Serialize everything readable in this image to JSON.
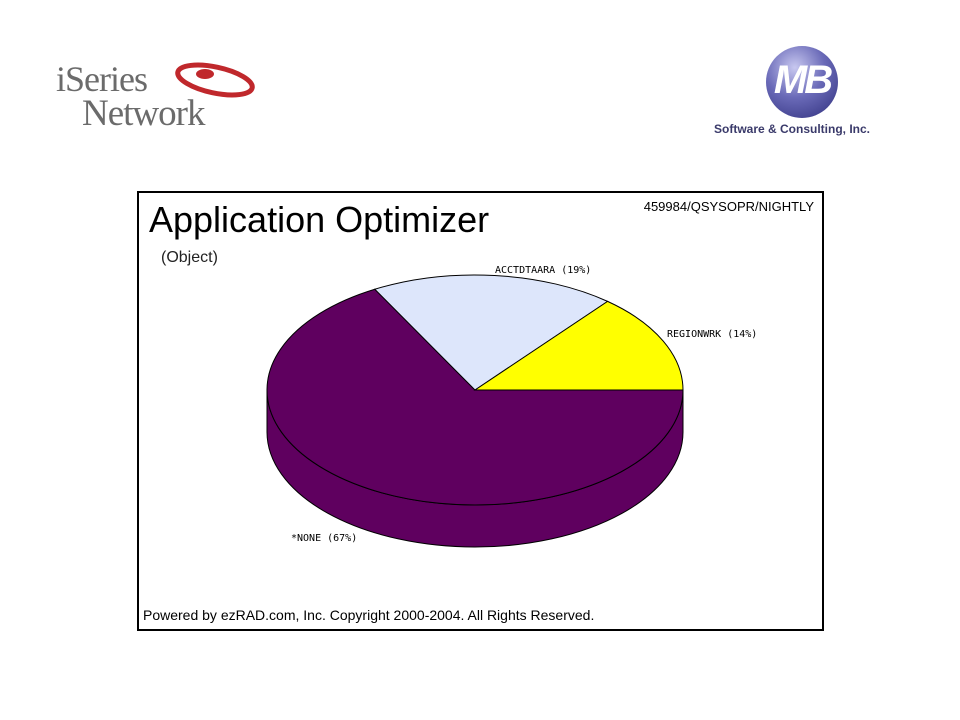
{
  "logos": {
    "left": {
      "line1": "iSeries",
      "line2": "Network"
    },
    "right": {
      "mark": "MB",
      "tagline": "Software & Consulting, Inc."
    }
  },
  "chart_data": {
    "type": "pie",
    "title": "Application Optimizer",
    "subtitle": "(Object)",
    "job_label": "459984/QSYSOPR/NIGHTLY",
    "footer": "Powered by ezRAD.com, Inc. Copyright 2000-2004.  All Rights Reserved.",
    "slices": [
      {
        "label": "*NONE (67%)",
        "value": 67,
        "color": "#5f005f",
        "side_color": "#5f005f"
      },
      {
        "label": "ACCTDTAARA (19%)",
        "value": 19,
        "color": "#dde6fb",
        "side_color": "#dde6fb"
      },
      {
        "label": "REGIONWRK (14%)",
        "value": 14,
        "color": "#ffff00",
        "side_color": "#ffff00"
      }
    ],
    "style": "3d",
    "legend": "none"
  }
}
